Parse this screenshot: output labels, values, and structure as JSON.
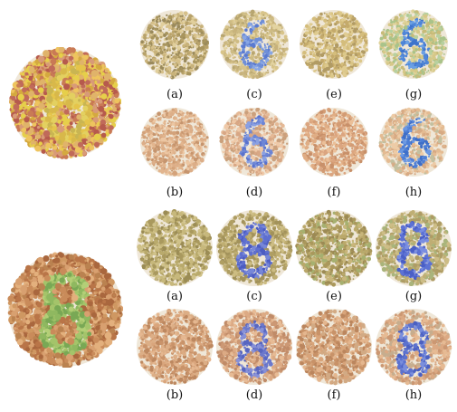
{
  "figure": {
    "top_group": {
      "original_numeral": "6",
      "original_palette": [
        "#d4a93f",
        "#c97a55",
        "#e0b36a",
        "#b65a4d",
        "#e6cf4a",
        "#c06a5a",
        "#d89a78",
        "#eec45e"
      ],
      "original_figure_palette": [
        "#e5c44a",
        "#d8b84a",
        "#c9b552",
        "#e3d060"
      ],
      "variants": [
        {
          "caption": "(a)",
          "figure": false,
          "bg": [
            "#c8b27a",
            "#b8a26a",
            "#d6c08a",
            "#a8955e",
            "#e1cf9c",
            "#9a8a5c"
          ],
          "fg": []
        },
        {
          "caption": "(c)",
          "figure": true,
          "bg": [
            "#d8c48a",
            "#c7b27b",
            "#e3d3a0",
            "#b7a56f",
            "#cdbb84"
          ],
          "fg": [
            "#6f8fd8",
            "#5a7ad0",
            "#88a6e4"
          ]
        },
        {
          "caption": "(e)",
          "figure": false,
          "bg": [
            "#d4bd7c",
            "#c4aa6b",
            "#e0cc92",
            "#b19b64",
            "#dcc88a"
          ],
          "fg": []
        },
        {
          "caption": "(g)",
          "figure": true,
          "bg": [
            "#d6c888",
            "#c7bb79",
            "#a9c38a",
            "#dfd39b",
            "#b7d0a0"
          ],
          "fg": [
            "#4f86d8",
            "#6aa0e4",
            "#3e74cc"
          ]
        },
        {
          "caption": "(b)",
          "figure": false,
          "bg": [
            "#e2b58e",
            "#d3a27a",
            "#ecc6a2",
            "#c6956e",
            "#dcae88"
          ],
          "fg": []
        },
        {
          "caption": "(d)",
          "figure": true,
          "bg": [
            "#e5b996",
            "#d8a785",
            "#efc9a8",
            "#caa07c"
          ],
          "fg": [
            "#6d86d6",
            "#8aa0e2",
            "#5a72cc"
          ]
        },
        {
          "caption": "(f)",
          "figure": false,
          "bg": [
            "#e0ad84",
            "#d39c74",
            "#ebbf98",
            "#c8906a",
            "#dba580"
          ],
          "fg": []
        },
        {
          "caption": "(h)",
          "figure": true,
          "bg": [
            "#e4bb92",
            "#d7aa84",
            "#c3c0a0",
            "#edcba6"
          ],
          "fg": [
            "#4e7fd6",
            "#6b98e2",
            "#3f6fc8"
          ]
        }
      ]
    },
    "bottom_group": {
      "original_numeral": "8",
      "original_palette": [
        "#c98b5a",
        "#b97548",
        "#d8a070",
        "#e3b07d",
        "#a9673e",
        "#cf9862",
        "#ba8250"
      ],
      "original_figure_palette": [
        "#8fb860",
        "#a4c46a",
        "#79a855",
        "#b3cf77"
      ],
      "variants": [
        {
          "caption": "(a)",
          "figure": false,
          "bg": [
            "#b9aa6c",
            "#a9995e",
            "#c7b87c",
            "#9b8c55",
            "#d0c28a"
          ],
          "fg": []
        },
        {
          "caption": "(c)",
          "figure": true,
          "bg": [
            "#bfae72",
            "#af9e63",
            "#cdbd83",
            "#a2925b"
          ],
          "fg": [
            "#5e6fcf",
            "#7787d8",
            "#4c5cc2"
          ]
        },
        {
          "caption": "(e)",
          "figure": false,
          "bg": [
            "#baa86a",
            "#aa985c",
            "#c8b67b",
            "#9c8a54",
            "#a6b070"
          ],
          "fg": []
        },
        {
          "caption": "(g)",
          "figure": true,
          "bg": [
            "#bfae74",
            "#ae9c65",
            "#a9b47b",
            "#cdbd86"
          ],
          "fg": [
            "#5d72d4",
            "#7a8ee0",
            "#4a5fc6"
          ]
        },
        {
          "caption": "(b)",
          "figure": false,
          "bg": [
            "#d9a57c",
            "#c9936a",
            "#e5b790",
            "#bd8860",
            "#dcae86"
          ],
          "fg": []
        },
        {
          "caption": "(d)",
          "figure": true,
          "bg": [
            "#dcaa84",
            "#cc9874",
            "#e7bb95",
            "#c08b68"
          ],
          "fg": [
            "#6b78cc",
            "#8791d8",
            "#5866c0"
          ]
        },
        {
          "caption": "(f)",
          "figure": false,
          "bg": [
            "#d8a47a",
            "#c89268",
            "#e4b68e",
            "#bb865e",
            "#d2aa84"
          ],
          "fg": []
        },
        {
          "caption": "(h)",
          "figure": true,
          "bg": [
            "#dba983",
            "#cb9772",
            "#c6ad8e",
            "#e6ba93"
          ],
          "fg": [
            "#5c72cf",
            "#7a8edc",
            "#4b60c1"
          ]
        }
      ]
    }
  }
}
